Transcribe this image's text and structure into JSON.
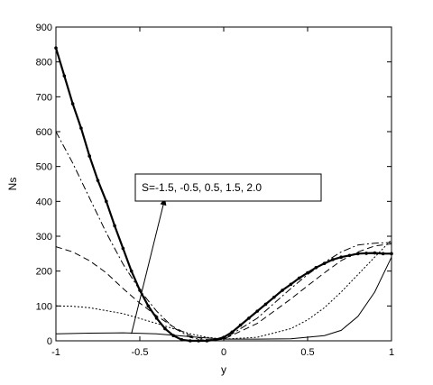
{
  "chart_data": {
    "type": "line",
    "title": "",
    "xlabel": "y",
    "ylabel": "Ns",
    "xlim": [
      -1,
      1
    ],
    "ylim": [
      0,
      900
    ],
    "xticks": [
      -1,
      -0.5,
      0,
      0.5,
      1
    ],
    "xtick_labels": [
      "-1",
      "-0.5",
      "0",
      "0.5",
      "1"
    ],
    "yticks": [
      0,
      100,
      200,
      300,
      400,
      500,
      600,
      700,
      800,
      900
    ],
    "ytick_labels": [
      "0",
      "100",
      "200",
      "300",
      "400",
      "500",
      "600",
      "700",
      "800",
      "900"
    ],
    "grid": false,
    "annotation": {
      "text": "S=-1.5, -0.5, 0.5, 1.5, 2.0",
      "arrow_from": [
        -0.55,
        20
      ],
      "arrow_to": [
        -0.35,
        410
      ]
    },
    "series": [
      {
        "style": "solid",
        "color": "#000000",
        "x": [
          -1,
          -0.8,
          -0.6,
          -0.4,
          -0.2,
          -0.1,
          0,
          0.2,
          0.4,
          0.6,
          0.7,
          0.8,
          0.9,
          1.0
        ],
        "y": [
          20,
          22,
          23,
          20,
          12,
          8,
          5,
          5,
          6,
          15,
          30,
          70,
          140,
          240
        ]
      },
      {
        "style": "dotted",
        "color": "#000000",
        "x": [
          -1,
          -0.9,
          -0.8,
          -0.6,
          -0.4,
          -0.2,
          -0.1,
          0,
          0.2,
          0.4,
          0.5,
          0.6,
          0.7,
          0.8,
          0.9,
          1.0
        ],
        "y": [
          100,
          99,
          95,
          78,
          50,
          20,
          10,
          5,
          10,
          35,
          60,
          95,
          140,
          190,
          240,
          290
        ]
      },
      {
        "style": "dashed",
        "color": "#000000",
        "x": [
          -1,
          -0.9,
          -0.8,
          -0.7,
          -0.6,
          -0.5,
          -0.4,
          -0.3,
          -0.2,
          -0.1,
          0,
          0.2,
          0.4,
          0.5,
          0.6,
          0.7,
          0.8,
          0.9,
          1.0
        ],
        "y": [
          270,
          255,
          230,
          195,
          150,
          108,
          72,
          40,
          15,
          3,
          5,
          50,
          120,
          158,
          195,
          230,
          255,
          272,
          278
        ]
      },
      {
        "style": "dashdot",
        "color": "#000000",
        "x": [
          -1,
          -0.9,
          -0.8,
          -0.7,
          -0.6,
          -0.5,
          -0.4,
          -0.3,
          -0.2,
          -0.1,
          0,
          0.2,
          0.4,
          0.5,
          0.6,
          0.7,
          0.8,
          0.9,
          1.0
        ],
        "y": [
          600,
          510,
          410,
          310,
          220,
          145,
          85,
          38,
          10,
          0,
          5,
          65,
          150,
          190,
          225,
          255,
          275,
          280,
          282
        ]
      },
      {
        "style": "thick-marker",
        "color": "#000000",
        "x": [
          -1,
          -0.95,
          -0.9,
          -0.85,
          -0.8,
          -0.75,
          -0.7,
          -0.65,
          -0.6,
          -0.55,
          -0.5,
          -0.45,
          -0.4,
          -0.35,
          -0.3,
          -0.25,
          -0.2,
          -0.15,
          -0.1,
          -0.05,
          0,
          0.05,
          0.1,
          0.15,
          0.2,
          0.25,
          0.3,
          0.35,
          0.4,
          0.45,
          0.5,
          0.55,
          0.6,
          0.65,
          0.7,
          0.75,
          0.8,
          0.85,
          0.9,
          0.95,
          1.0
        ],
        "y": [
          840,
          760,
          680,
          610,
          530,
          460,
          400,
          330,
          265,
          200,
          145,
          100,
          65,
          35,
          15,
          3,
          0,
          0,
          0,
          3,
          10,
          25,
          45,
          65,
          85,
          105,
          125,
          145,
          162,
          180,
          195,
          210,
          222,
          233,
          240,
          245,
          250,
          251,
          252,
          250,
          250
        ]
      }
    ]
  }
}
